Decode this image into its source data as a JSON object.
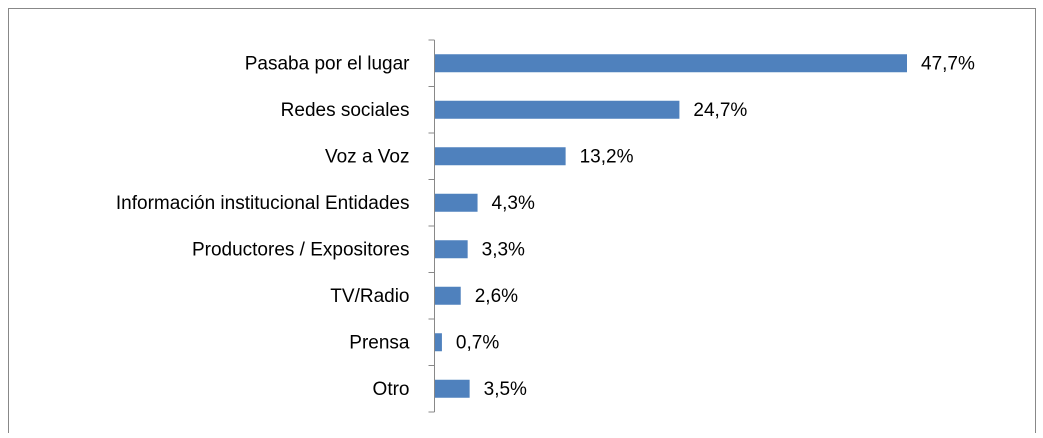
{
  "chart_data": {
    "type": "bar",
    "orientation": "horizontal",
    "categories": [
      "Pasaba por el lugar",
      "Redes sociales",
      "Voz  a Voz",
      "Información institucional Entidades",
      "Productores / Expositores",
      "TV/Radio",
      "Prensa",
      "Otro"
    ],
    "values": [
      47.7,
      24.7,
      13.2,
      4.3,
      3.3,
      2.6,
      0.7,
      3.5
    ],
    "value_labels": [
      "47,7%",
      "24,7%",
      "13,2%",
      "4,3%",
      "3,3%",
      "2,6%",
      "0,7%",
      "3,5%"
    ],
    "color": "#4f81bd"
  }
}
